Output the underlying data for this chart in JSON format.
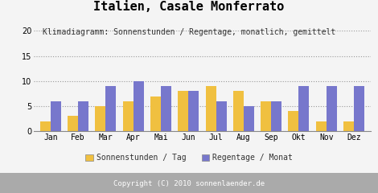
{
  "title": "Italien, Casale Monferrato",
  "subtitle": "Klimadiagramm: Sonnenstunden / Regentage, monatlich, gemittelt",
  "months": [
    "Jan",
    "Feb",
    "Mar",
    "Apr",
    "Mai",
    "Jun",
    "Jul",
    "Aug",
    "Sep",
    "Okt",
    "Nov",
    "Dez"
  ],
  "sonnenstunden": [
    2,
    3,
    5,
    6,
    7,
    8,
    9,
    8,
    6,
    4,
    2,
    2
  ],
  "regentage": [
    6,
    6,
    9,
    10,
    9,
    8,
    6,
    5,
    6,
    9,
    9,
    9
  ],
  "color_sonnen": "#f0c040",
  "color_regen": "#7777cc",
  "ylim": [
    0,
    20
  ],
  "yticks": [
    0,
    5,
    10,
    15,
    20
  ],
  "legend_sonnen": "Sonnenstunden / Tag",
  "legend_regen": "Regentage / Monat",
  "copyright": "Copyright (C) 2010 sonnenlaender.de",
  "bg_color": "#f4f4f4",
  "plot_bg_color": "#f4f4f4",
  "footer_bg": "#aaaaaa",
  "title_fontsize": 11,
  "subtitle_fontsize": 7,
  "axis_fontsize": 7,
  "legend_fontsize": 7,
  "bar_width": 0.38
}
